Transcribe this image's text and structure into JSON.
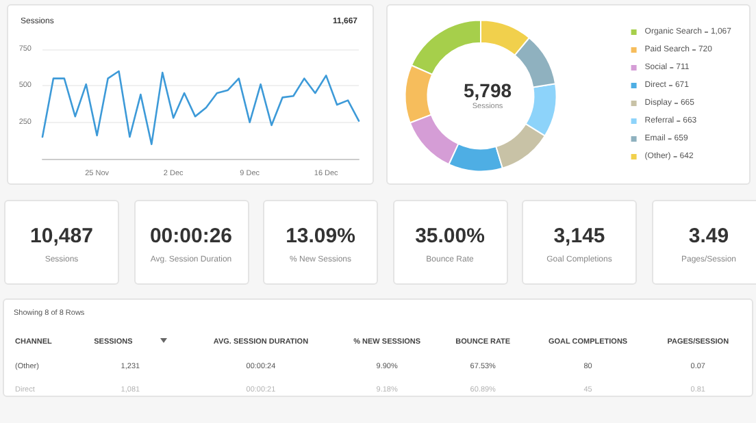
{
  "chart_data": [
    {
      "type": "line",
      "title": "Sessions",
      "subtitle": "11,667",
      "x": [
        "--11-20",
        "--11-21",
        "--11-22",
        "--11-23",
        "--11-24",
        "--11-25",
        "--11-26",
        "--11-27",
        "--11-28",
        "--11-29",
        "--11-30",
        "--12-01",
        "--12-02",
        "--12-03",
        "--12-04",
        "--12-05",
        "--12-06",
        "--12-07",
        "--12-08",
        "--12-09",
        "--12-10",
        "--12-11",
        "--12-12",
        "--12-13",
        "--12-14",
        "--12-15",
        "--12-16",
        "--12-17",
        "--12-18",
        "--12-19"
      ],
      "series": [
        {
          "color": "#3d9ad8",
          "values": [
            150,
            550,
            550,
            290,
            510,
            160,
            550,
            600,
            150,
            440,
            100,
            590,
            280,
            450,
            290,
            350,
            450,
            470,
            550,
            250,
            510,
            230,
            420,
            430,
            550,
            450,
            570,
            370,
            400,
            260
          ]
        }
      ],
      "xlim": [
        "--11-20",
        "--12-19"
      ],
      "xticks": [
        {
          "value": "--11-25",
          "label": "25 Nov"
        },
        {
          "value": "--12-02",
          "label": "2 Dec"
        },
        {
          "value": "--12-09",
          "label": "9 Dec"
        },
        {
          "value": "--12-16",
          "label": "16 Dec"
        }
      ],
      "ylim": [
        0,
        750
      ],
      "yticks": [
        250,
        500,
        750
      ],
      "grid": "y",
      "legend": false,
      "marker": "none",
      "line_style": "solid"
    },
    {
      "type": "donut",
      "annotations": [
        "5,798",
        "Sessions"
      ],
      "categories": [
        "Organic Search",
        "Paid Search",
        "Social",
        "Direct",
        "Display",
        "Referral",
        "Email",
        "(Other)"
      ],
      "value_labels": [
        "1,067",
        "720",
        "711",
        "671",
        "665",
        "663",
        "659",
        "642"
      ],
      "values": [
        1067,
        720,
        711,
        671,
        665,
        663,
        659,
        642
      ],
      "colors": [
        "#a6cf4b",
        "#f6bd5c",
        "#d59dd6",
        "#4eaee4",
        "#c8c2a6",
        "#8dd3fa",
        "#8fb1bf",
        "#f1d04c"
      ],
      "legend": "right"
    },
    {
      "type": "other",
      "categories": [
        "Sessions",
        "Avg. Session Duration",
        "% New Sessions",
        "Bounce Rate",
        "Goal Completions",
        "Pages/Session"
      ],
      "value_labels": [
        "10,487",
        "00:00:26",
        "13.09%",
        "35.00%",
        "3,145",
        "3.49"
      ]
    },
    {
      "type": "other",
      "title": "Showing 8 of 8 Rows",
      "ylabel": "CHANNEL",
      "categories": [
        "SESSIONS",
        "AVG. SESSION DURATION",
        "% NEW SESSIONS",
        "BOUNCE RATE",
        "GOAL COMPLETIONS",
        "PAGES/SESSION"
      ],
      "y_categories": [
        "(Other)",
        "Direct"
      ],
      "cell_labels": [
        [
          "1,231",
          "00:00:24",
          "9.90%",
          "67.53%",
          "80",
          "0.07"
        ],
        [
          "1,081",
          "00:00:21",
          "9.18%",
          "60.89%",
          "45",
          "0.81"
        ]
      ]
    }
  ]
}
